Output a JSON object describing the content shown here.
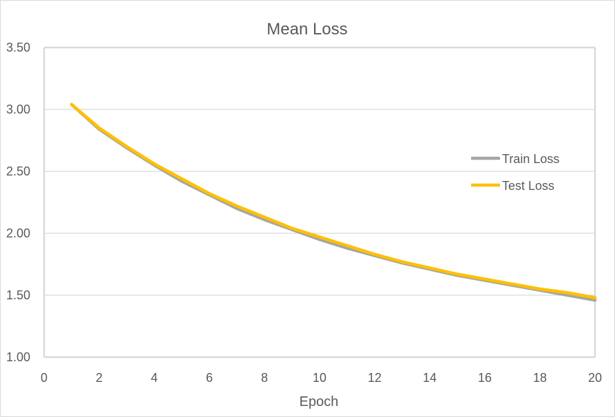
{
  "chart_data": {
    "type": "line",
    "title": "Mean Loss",
    "xlabel": "Epoch",
    "ylabel": "",
    "xlim": [
      0,
      20
    ],
    "ylim": [
      1.0,
      3.5
    ],
    "xticks": [
      0,
      2,
      4,
      6,
      8,
      10,
      12,
      14,
      16,
      18,
      20
    ],
    "xtick_labels": [
      "0",
      "2",
      "4",
      "6",
      "8",
      "10",
      "12",
      "14",
      "16",
      "18",
      "20"
    ],
    "yticks": [
      1.0,
      1.5,
      2.0,
      2.5,
      3.0,
      3.5
    ],
    "ytick_labels": [
      "1.00",
      "1.50",
      "2.00",
      "2.50",
      "3.00",
      "3.50"
    ],
    "grid": true,
    "legend_position": "right",
    "x": [
      1,
      2,
      3,
      4,
      5,
      6,
      7,
      8,
      9,
      10,
      11,
      12,
      13,
      14,
      15,
      16,
      17,
      18,
      19,
      20
    ],
    "series": [
      {
        "name": "Train Loss",
        "color": "#a5a5a5",
        "values": [
          3.04,
          2.84,
          2.69,
          2.55,
          2.42,
          2.31,
          2.2,
          2.11,
          2.03,
          1.95,
          1.88,
          1.82,
          1.76,
          1.71,
          1.66,
          1.62,
          1.58,
          1.54,
          1.5,
          1.46
        ]
      },
      {
        "name": "Test Loss",
        "color": "#ffc000",
        "values": [
          3.04,
          2.85,
          2.7,
          2.56,
          2.44,
          2.32,
          2.22,
          2.13,
          2.04,
          1.97,
          1.9,
          1.83,
          1.77,
          1.72,
          1.67,
          1.63,
          1.59,
          1.55,
          1.52,
          1.48
        ]
      }
    ],
    "colors": {
      "grid": "#d9d9d9",
      "text": "#595959",
      "axis": "#d9d9d9"
    }
  }
}
